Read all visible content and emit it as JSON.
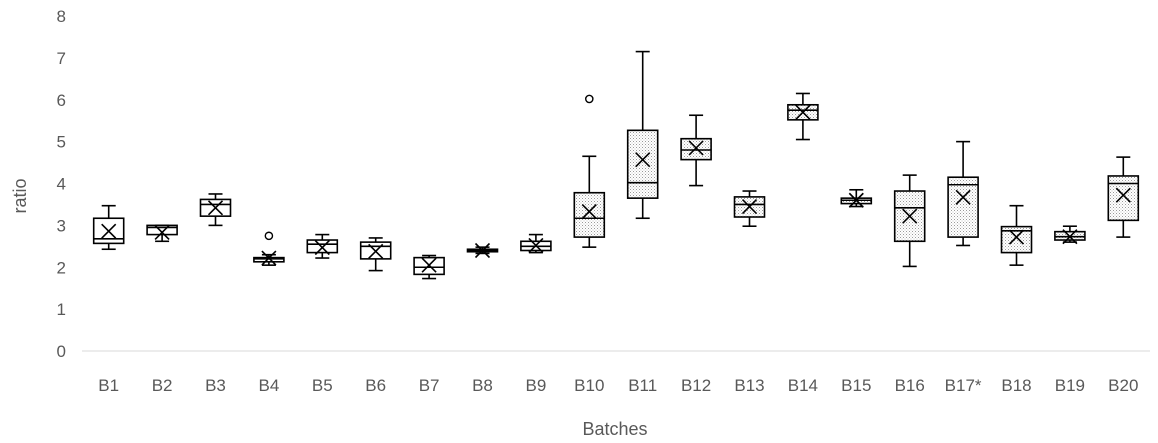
{
  "chart_data": {
    "type": "box",
    "title": "",
    "xlabel": "Batches",
    "ylabel": "ratio",
    "ylim": [
      0,
      8
    ],
    "yticks": [
      "0",
      "1",
      "2",
      "3",
      "4",
      "5",
      "6",
      "7",
      "8"
    ],
    "grid": false,
    "legend": "none",
    "categories": [
      "B1",
      "B2",
      "B3",
      "B4",
      "B5",
      "B6",
      "B7",
      "B8",
      "B9",
      "B10",
      "B11",
      "B12",
      "B13",
      "B14",
      "B15",
      "B16",
      "B17*",
      "B18",
      "B19",
      "B20"
    ],
    "boxes": [
      {
        "min": 2.43,
        "q1": 2.57,
        "median": 2.68,
        "q3": 3.17,
        "max": 3.47,
        "mean": 2.86,
        "outliers": [],
        "fill": "none"
      },
      {
        "min": 2.62,
        "q1": 2.78,
        "median": 2.95,
        "q3": 3.0,
        "max": 3.0,
        "mean": 2.83,
        "outliers": [],
        "fill": "none"
      },
      {
        "min": 3.0,
        "q1": 3.22,
        "median": 3.5,
        "q3": 3.62,
        "max": 3.75,
        "mean": 3.42,
        "outliers": [],
        "fill": "none"
      },
      {
        "min": 2.05,
        "q1": 2.13,
        "median": 2.2,
        "q3": 2.23,
        "max": 2.3,
        "mean": 2.22,
        "outliers": [
          2.75
        ],
        "fill": "none"
      },
      {
        "min": 2.22,
        "q1": 2.35,
        "median": 2.55,
        "q3": 2.65,
        "max": 2.78,
        "mean": 2.47,
        "outliers": [],
        "fill": "none"
      },
      {
        "min": 1.92,
        "q1": 2.2,
        "median": 2.5,
        "q3": 2.6,
        "max": 2.7,
        "mean": 2.38,
        "outliers": [],
        "fill": "none"
      },
      {
        "min": 1.73,
        "q1": 1.83,
        "median": 2.0,
        "q3": 2.23,
        "max": 2.28,
        "mean": 2.05,
        "outliers": [],
        "fill": "none"
      },
      {
        "min": 2.33,
        "q1": 2.37,
        "median": 2.4,
        "q3": 2.43,
        "max": 2.48,
        "mean": 2.4,
        "outliers": [],
        "fill": "none"
      },
      {
        "min": 2.35,
        "q1": 2.4,
        "median": 2.5,
        "q3": 2.62,
        "max": 2.78,
        "mean": 2.52,
        "outliers": [],
        "fill": "none"
      },
      {
        "min": 2.48,
        "q1": 2.72,
        "median": 3.17,
        "q3": 3.78,
        "max": 4.65,
        "mean": 3.33,
        "outliers": [
          6.02
        ],
        "fill": "dotted"
      },
      {
        "min": 3.17,
        "q1": 3.65,
        "median": 4.02,
        "q3": 5.27,
        "max": 7.15,
        "mean": 4.57,
        "outliers": [],
        "fill": "dotted"
      },
      {
        "min": 3.95,
        "q1": 4.57,
        "median": 4.8,
        "q3": 5.07,
        "max": 5.63,
        "mean": 4.85,
        "outliers": [],
        "fill": "dotted"
      },
      {
        "min": 2.98,
        "q1": 3.2,
        "median": 3.5,
        "q3": 3.68,
        "max": 3.82,
        "mean": 3.45,
        "outliers": [],
        "fill": "dotted"
      },
      {
        "min": 5.05,
        "q1": 5.52,
        "median": 5.75,
        "q3": 5.88,
        "max": 6.15,
        "mean": 5.7,
        "outliers": [],
        "fill": "dotted"
      },
      {
        "min": 3.45,
        "q1": 3.52,
        "median": 3.6,
        "q3": 3.65,
        "max": 3.85,
        "mean": 3.6,
        "outliers": [],
        "fill": "dotted"
      },
      {
        "min": 2.02,
        "q1": 2.62,
        "median": 3.42,
        "q3": 3.82,
        "max": 4.2,
        "mean": 3.22,
        "outliers": [],
        "fill": "dotted"
      },
      {
        "min": 2.52,
        "q1": 2.72,
        "median": 3.97,
        "q3": 4.15,
        "max": 5.0,
        "mean": 3.67,
        "outliers": [],
        "fill": "dotted"
      },
      {
        "min": 2.05,
        "q1": 2.35,
        "median": 2.87,
        "q3": 2.97,
        "max": 3.47,
        "mean": 2.72,
        "outliers": [],
        "fill": "dotted"
      },
      {
        "min": 2.6,
        "q1": 2.65,
        "median": 2.73,
        "q3": 2.85,
        "max": 2.98,
        "mean": 2.73,
        "outliers": [],
        "fill": "dotted"
      },
      {
        "min": 2.72,
        "q1": 3.12,
        "median": 4.0,
        "q3": 4.18,
        "max": 4.63,
        "mean": 3.72,
        "outliers": [],
        "fill": "dotted"
      }
    ]
  }
}
